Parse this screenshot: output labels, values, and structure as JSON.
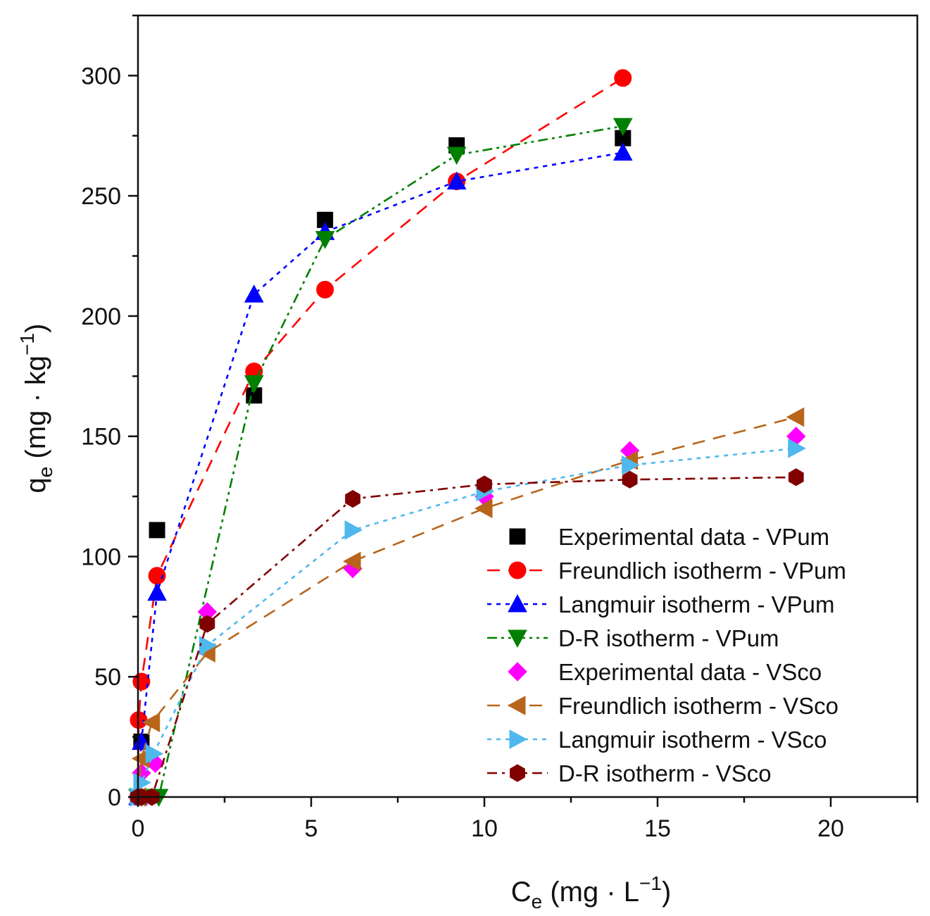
{
  "chart_data": {
    "type": "scatter",
    "title": "",
    "xlabel": {
      "base": "C",
      "sub": "e",
      "unit_pre": " (mg · L",
      "sup": "−1",
      "unit_post": ")"
    },
    "ylabel": {
      "base": "q",
      "sub": "e",
      "unit_pre": " (mg · kg",
      "sup": "−1",
      "unit_post": ")"
    },
    "xlim": [
      0,
      22.5
    ],
    "ylim": [
      0,
      325
    ],
    "xticks": [
      0,
      5,
      10,
      15,
      20
    ],
    "yticks": [
      0,
      50,
      100,
      150,
      200,
      250,
      300
    ],
    "x_minor_step": 2.5,
    "y_minor_step": 25,
    "grid": false,
    "legend_position": "bottom-right",
    "series": [
      {
        "name": "Experimental data - VPum",
        "color": "#000000",
        "marker": "square",
        "line": "none",
        "x": [
          0.1,
          0.55,
          3.35,
          5.4,
          9.2,
          14.0
        ],
        "y": [
          23,
          111,
          167,
          240,
          271,
          274
        ]
      },
      {
        "name": "Freundlich isotherm - VPum",
        "color": "#ff0000",
        "marker": "circle",
        "line": "dash",
        "x": [
          0.0,
          0.02,
          0.1,
          0.55,
          3.35,
          5.4,
          9.2,
          14.0
        ],
        "y": [
          0,
          32,
          48,
          92,
          177,
          211,
          256,
          299
        ]
      },
      {
        "name": "Langmuir isotherm - VPum",
        "color": "#0000ff",
        "marker": "triangle-up",
        "line": "dot",
        "x": [
          0.0,
          0.1,
          0.55,
          3.35,
          5.4,
          9.2,
          14.0
        ],
        "y": [
          0,
          23,
          85,
          209,
          235,
          256,
          268
        ]
      },
      {
        "name": "D-R isotherm - VPum",
        "color": "#008000",
        "marker": "triangle-down",
        "line": "dashdotdot",
        "x": [
          0.0,
          0.1,
          0.6,
          3.35,
          5.4,
          9.2,
          14.0
        ],
        "y": [
          0,
          0,
          0,
          172,
          232,
          267,
          279
        ]
      },
      {
        "name": "Experimental data - VSco",
        "color": "#ff00ff",
        "marker": "diamond",
        "line": "none",
        "x": [
          0.1,
          0.5,
          2.0,
          6.2,
          10.0,
          14.2,
          19.0
        ],
        "y": [
          10,
          14,
          77,
          95,
          125,
          144,
          150
        ]
      },
      {
        "name": "Freundlich isotherm - VSco",
        "color": "#b8651b",
        "marker": "triangle-left",
        "line": "dash",
        "x": [
          0.0,
          0.1,
          0.4,
          2.0,
          6.2,
          10.0,
          14.2,
          19.0
        ],
        "y": [
          0,
          16,
          31,
          60,
          98,
          120,
          140,
          158
        ]
      },
      {
        "name": "Langmuir isotherm - VSco",
        "color": "#4fb8ec",
        "marker": "triangle-right",
        "line": "dot",
        "x": [
          0.0,
          0.1,
          0.45,
          2.0,
          6.2,
          10.0,
          14.2,
          19.0
        ],
        "y": [
          0,
          6,
          18,
          63,
          111,
          127,
          138,
          145
        ]
      },
      {
        "name": "D-R isotherm - VSco",
        "color": "#800000",
        "marker": "hexagon",
        "line": "dashdot",
        "x": [
          0.0,
          0.1,
          0.4,
          2.0,
          6.2,
          10.0,
          14.2,
          19.0
        ],
        "y": [
          0,
          0,
          0,
          72,
          124,
          130,
          132,
          133
        ]
      }
    ]
  }
}
